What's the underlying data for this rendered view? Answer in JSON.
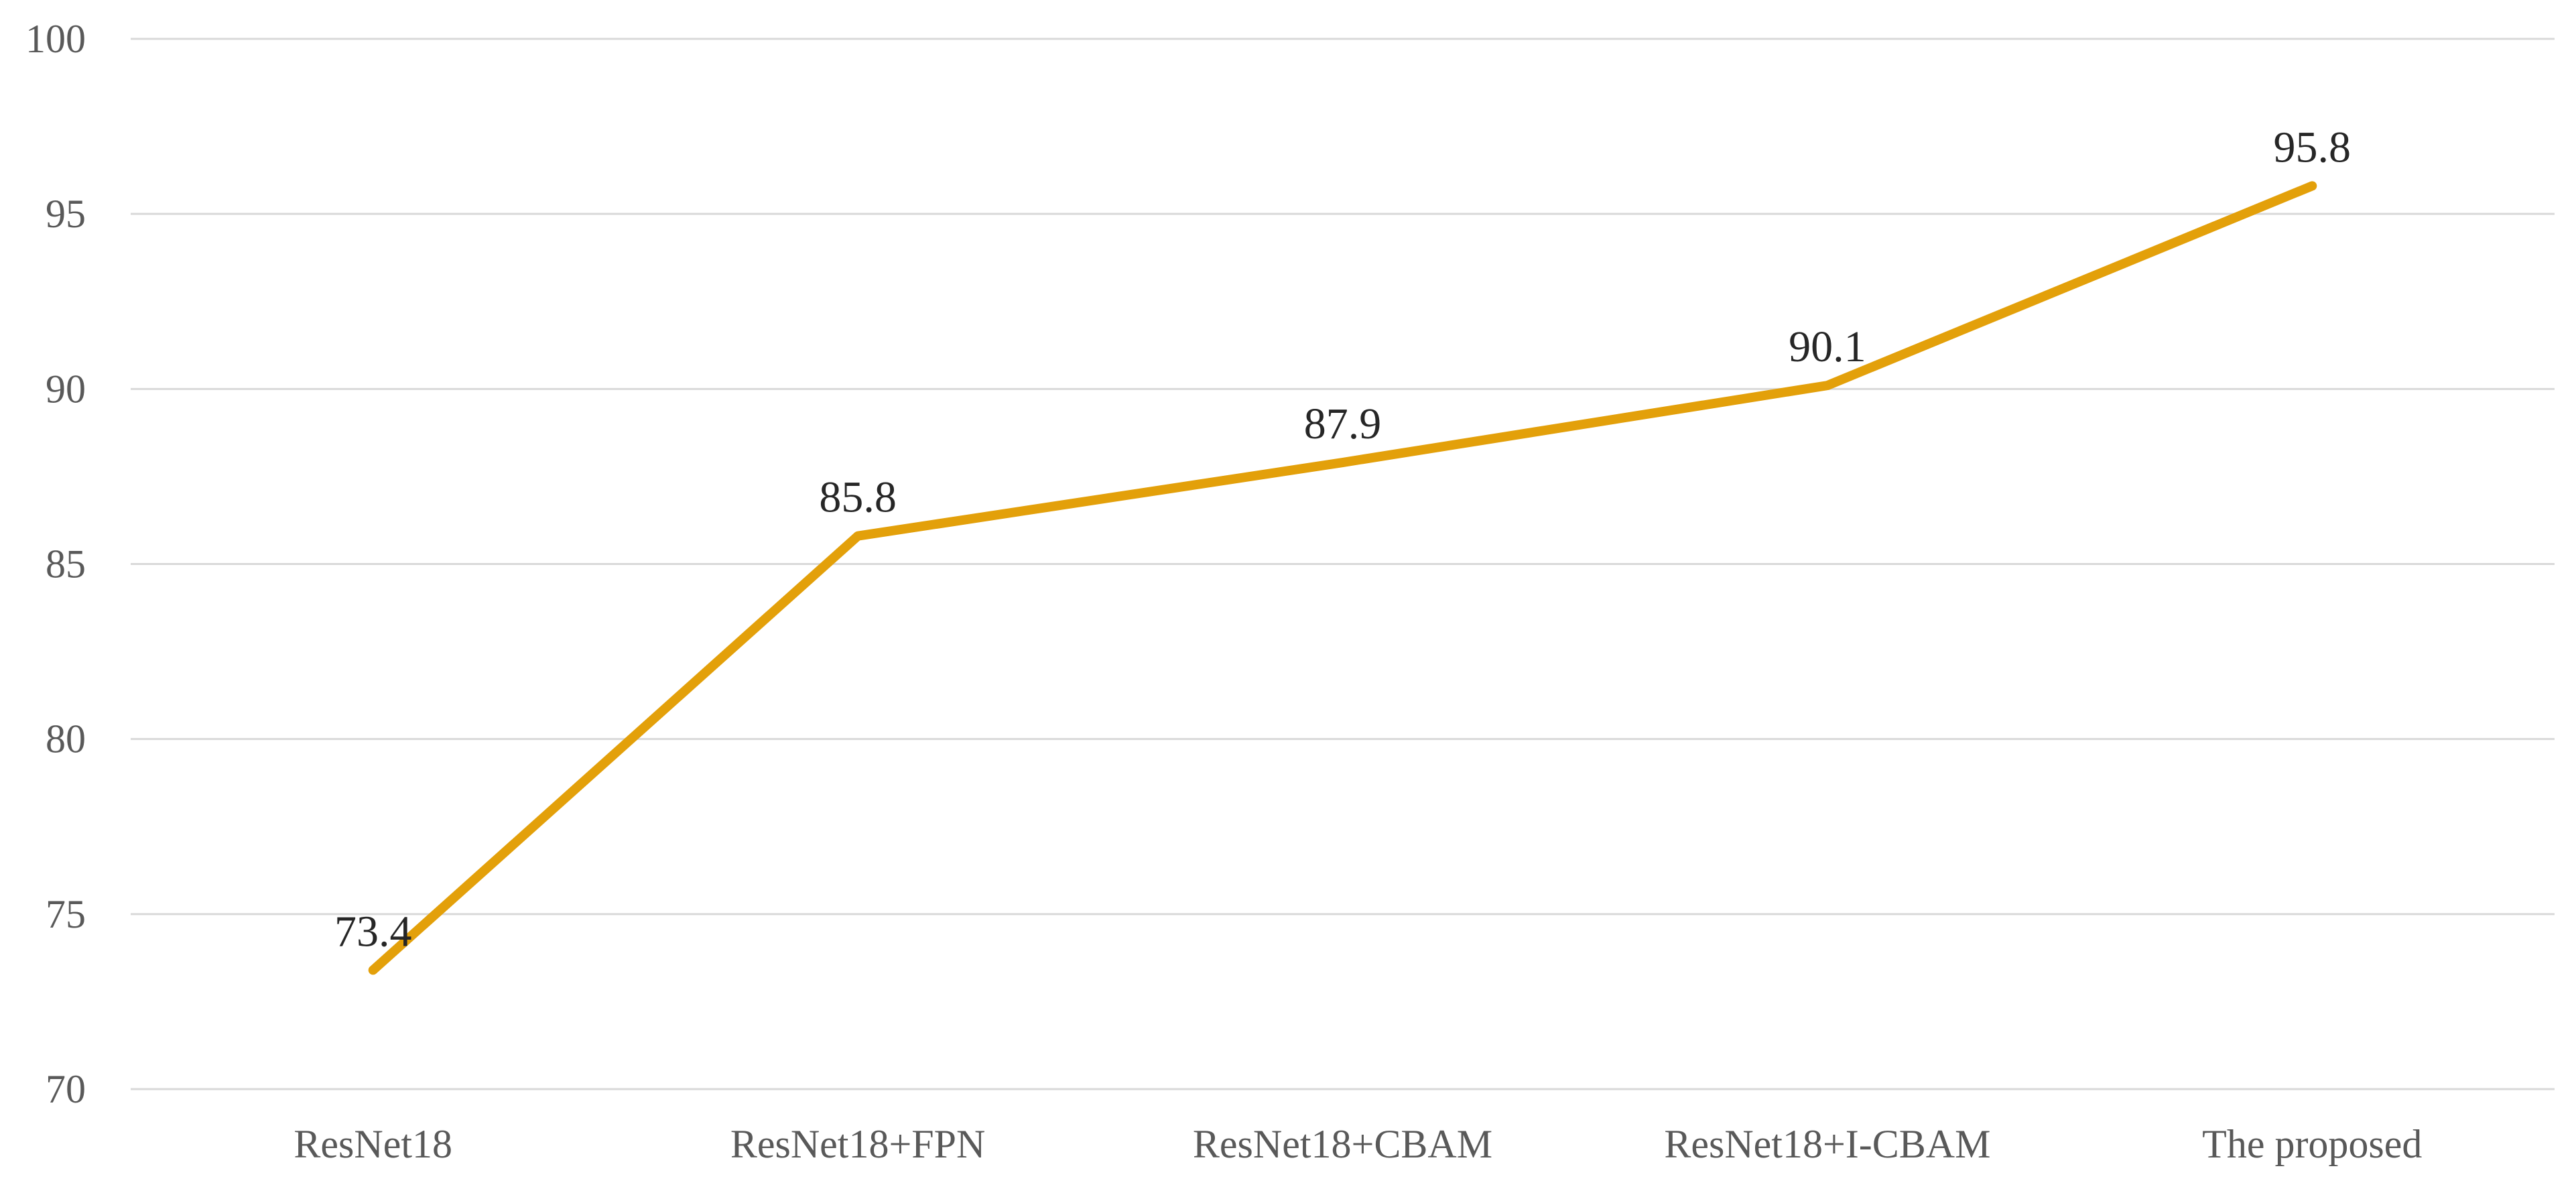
{
  "chart_data": {
    "type": "line",
    "title": "",
    "xlabel": "",
    "ylabel": "",
    "categories": [
      "ResNet18",
      "ResNet18+FPN",
      "ResNet18+CBAM",
      "ResNet18+I-CBAM",
      "The proposed"
    ],
    "series": [
      {
        "values": [
          73.4,
          85.8,
          87.9,
          90.1,
          95.8
        ],
        "color": "#E3A00A"
      }
    ],
    "ylim": [
      70,
      100
    ],
    "yticks": [
      70,
      75,
      80,
      85,
      90,
      95,
      100
    ],
    "ytick_labels": [
      "70",
      "75",
      "80",
      "85",
      "90",
      "95",
      "100"
    ],
    "data_labels": [
      "73.4",
      "85.8",
      "87.9",
      "90.1",
      "95.8"
    ],
    "grid": true,
    "legend": "none"
  }
}
